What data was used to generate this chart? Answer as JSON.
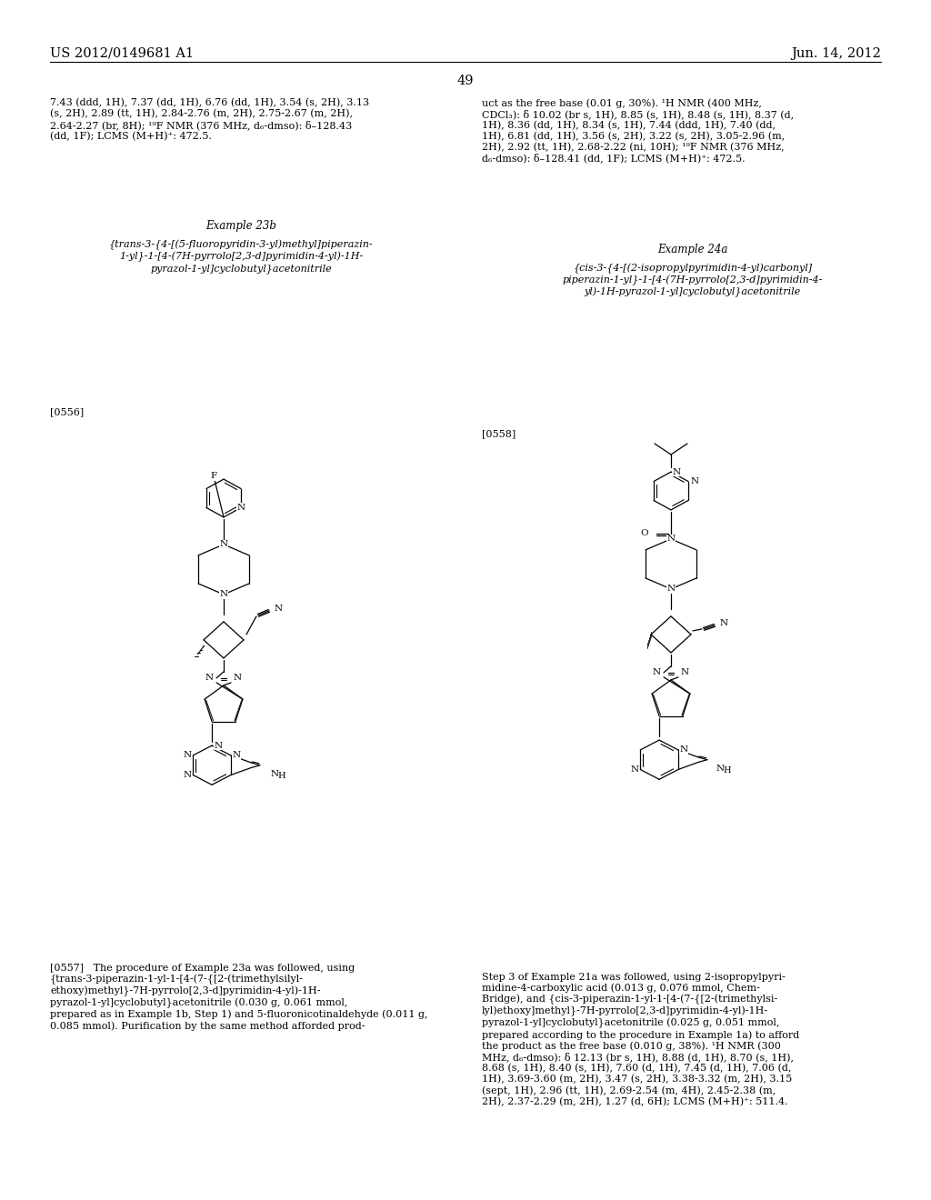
{
  "page_number": "49",
  "header_left": "US 2012/0149681 A1",
  "header_right": "Jun. 14, 2012",
  "background_color": "#ffffff",
  "text_color": "#000000",
  "font_size_header": 10.5,
  "font_size_body": 8.0,
  "font_size_example": 8.5,
  "top_text_left": "7.43 (ddd, 1H), 7.37 (dd, 1H), 6.76 (dd, 1H), 3.54 (s, 2H), 3.13\n(s, 2H), 2.89 (tt, 1H), 2.84-2.76 (m, 2H), 2.75-2.67 (m, 2H),\n2.64-2.27 (br, 8H); ¹⁹F NMR (376 MHz, d₆-dmso): δ–128.43\n(dd, 1F); LCMS (M+H)⁺: 472.5.",
  "top_text_right": "uct as the free base (0.01 g, 30%). ¹H NMR (400 MHz,\nCDCl₃): δ 10.02 (br s, 1H), 8.85 (s, 1H), 8.48 (s, 1H), 8.37 (d,\n1H), 8.36 (dd, 1H), 8.34 (s, 1H), 7.44 (ddd, 1H), 7.40 (dd,\n1H), 6.81 (dd, 1H), 3.56 (s, 2H), 3.22 (s, 2H), 3.05-2.96 (m,\n2H), 2.92 (tt, 1H), 2.68-2.22 (ni, 10H); ¹⁹F NMR (376 MHz,\nd₆-dmso): δ–128.41 (dd, 1F); LCMS (M+H)⁺: 472.5.",
  "example_23b_title": "Example 23b",
  "example_23b_name": "{trans-3-{4-[(5-fluoropyridin-3-yl)methyl]piperazin-\n1-yl}-1-[4-(7H-pyrrolo[2,3-d]pyrimidin-4-yl)-1H-\npyrazol-1-yl]cyclobutyl}acetonitrile",
  "example_24a_title": "Example 24a",
  "example_24a_name": "{cis-3-{4-[(2-isopropylpyrimidin-4-yl)carbonyl]\npiperazin-1-yl}-1-[4-(7H-pyrrolo[2,3-d]pyrimidin-4-\nyl)-1H-pyrazol-1-yl]cyclobutyl}acetonitrile",
  "paragraph_0556": "[0556]",
  "paragraph_0557": "[0557]   The procedure of Example 23a was followed, using\n{trans-3-piperazin-1-yl-1-[4-(7-{[2-(trimethylsilyl-\nethoxy)methyl}-7H-pyrrolo[2,3-d]pyrimidin-4-yl)-1H-\npyrazol-1-yl]cyclobutyl}acetonitrile (0.030 g, 0.061 mmol,\nprepared as in Example 1b, Step 1) and 5-fluoronicotinaldehyde (0.011 g,\n0.085 mmol). Purification by the same method afforded prod-",
  "paragraph_0558": "[0558]",
  "paragraph_0559_right": "Step 3 of Example 21a was followed, using 2-isopropylpyri-\nmidine-4-carboxylic acid (0.013 g, 0.076 mmol, Chem-\nBridge), and {cis-3-piperazin-1-yl-1-[4-(7-{[2-(trimethylsi-\nlyl)ethoxy]methyl}-7H-pyrrolo[2,3-d]pyrimidin-4-yl)-1H-\npyrazol-1-yl]cyclobutyl}acetonitrile (0.025 g, 0.051 mmol,\nprepared according to the procedure in Example 1a) to afford\nthe product as the free base (0.010 g, 38%). ¹H NMR (300\nMHz, d₆-dmso): δ 12.13 (br s, 1H), 8.88 (d, 1H), 8.70 (s, 1H),\n8.68 (s, 1H), 8.40 (s, 1H), 7.60 (d, 1H), 7.45 (d, 1H), 7.06 (d,\n1H), 3.69-3.60 (m, 2H), 3.47 (s, 2H), 3.38-3.32 (m, 2H), 3.15\n(sept, 1H), 2.96 (tt, 1H), 2.69-2.54 (m, 4H), 2.45-2.38 (m,\n2H), 2.37-2.29 (m, 2H), 1.27 (d, 6H); LCMS (M+H)⁺: 511.4."
}
